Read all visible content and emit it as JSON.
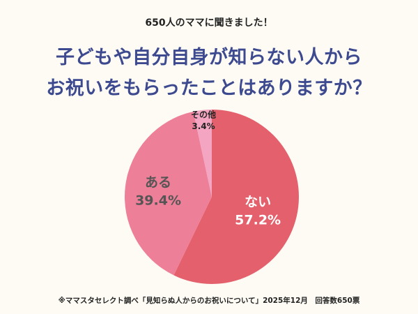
{
  "header": {
    "subtitle": "650人のママに聞きました！",
    "title_line1": "子どもや自分自身が知らない人から",
    "title_line2": "お祝いをもらったことはありますか？"
  },
  "chart_data": {
    "type": "pie",
    "title": "子どもや自分自身が知らない人からお祝いをもらったことはありますか？",
    "slices": [
      {
        "label": "ない",
        "value": 57.2,
        "value_label": "57.2%",
        "color": "#e4606c",
        "text_color": "#ffffff"
      },
      {
        "label": "ある",
        "value": 39.4,
        "value_label": "39.4%",
        "color": "#ee7f98",
        "text_color": "#555555"
      },
      {
        "label": "その他",
        "value": 3.4,
        "value_label": "3.4%",
        "color": "#f3a5c1",
        "text_color": "#222222"
      }
    ],
    "start": "12 o'clock",
    "direction": "clockwise"
  },
  "footer": {
    "source": "※ママスタセレクト調べ「見知らぬ人からのお祝いについて」2025年12月　回答数650票"
  }
}
